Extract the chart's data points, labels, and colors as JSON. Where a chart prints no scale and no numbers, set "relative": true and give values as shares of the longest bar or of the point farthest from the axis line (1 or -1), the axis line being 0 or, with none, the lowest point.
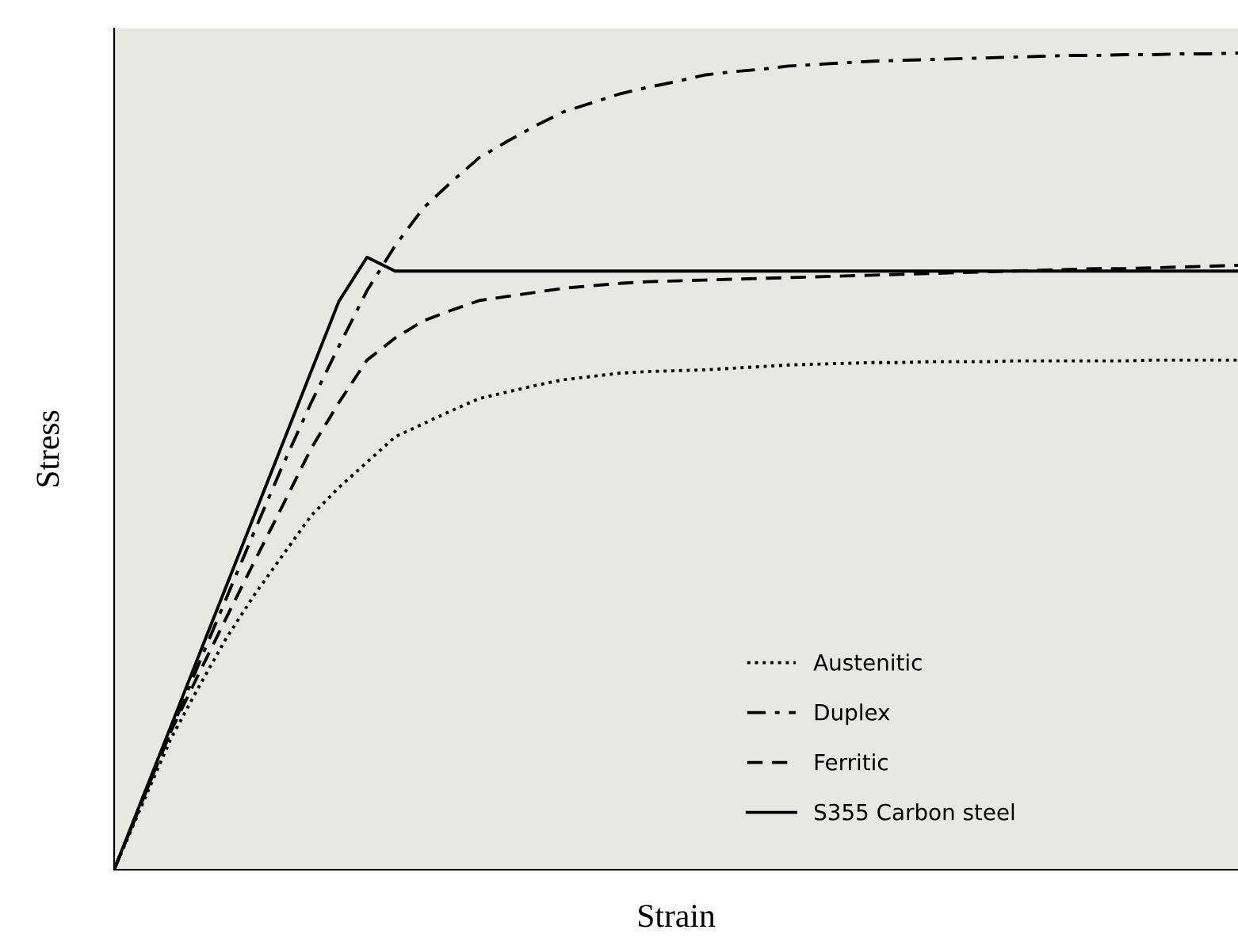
{
  "chart_data": {
    "type": "line",
    "relative": true,
    "xlabel": "Strain",
    "ylabel": "Stress",
    "legend": "bottom right",
    "marker": "none",
    "categories": [
      null,
      null,
      null,
      null,
      null,
      null,
      null,
      null,
      null,
      null,
      null,
      null,
      null,
      null,
      null,
      null,
      null,
      null,
      null,
      null,
      null,
      null,
      null,
      null,
      null,
      null,
      null,
      null,
      null,
      null,
      null,
      null,
      null,
      null,
      null,
      null,
      null,
      null,
      null,
      null,
      null
    ],
    "series": [
      {
        "name": "Austenitic",
        "color": "#000000",
        "line_style": "dotted",
        "values": [
          0,
          0.08,
          0.159,
          0.223,
          0.284,
          0.337,
          0.385,
          0.433,
          0.468,
          0.499,
          0.53,
          0.546,
          0.562,
          0.577,
          0.585,
          0.593,
          0.6,
          0.604,
          0.608,
          0.61,
          0.611,
          0.612,
          0.614,
          0.616,
          0.618,
          0.619,
          0.62,
          0.621,
          0.621,
          0.622,
          0.622,
          0.622,
          0.623,
          0.623,
          0.623,
          0.623,
          0.623,
          0.624,
          0.624,
          0.624,
          0.624
        ]
      },
      {
        "name": "Duplex",
        "color": "#000000",
        "line_style": "dashdot",
        "values": [
          0,
          0.084,
          0.168,
          0.251,
          0.333,
          0.415,
          0.495,
          0.571,
          0.641,
          0.709,
          0.764,
          0.81,
          0.842,
          0.872,
          0.892,
          0.911,
          0.928,
          0.939,
          0.95,
          0.958,
          0.965,
          0.973,
          0.977,
          0.98,
          0.984,
          0.986,
          0.988,
          0.99,
          0.991,
          0.992,
          0.993,
          0.994,
          0.995,
          0.996,
          0.997,
          0.997,
          0.998,
          0.998,
          0.999,
          0.999,
          1.0
        ]
      },
      {
        "name": "Ferritic",
        "color": "#000000",
        "line_style": "dashed",
        "values": [
          0,
          0.084,
          0.168,
          0.239,
          0.309,
          0.378,
          0.446,
          0.515,
          0.572,
          0.624,
          0.651,
          0.672,
          0.685,
          0.697,
          0.702,
          0.707,
          0.712,
          0.715,
          0.718,
          0.72,
          0.721,
          0.722,
          0.723,
          0.724,
          0.725,
          0.726,
          0.727,
          0.728,
          0.729,
          0.73,
          0.731,
          0.732,
          0.733,
          0.734,
          0.735,
          0.736,
          0.736,
          0.737,
          0.738,
          0.739,
          0.74
        ]
      },
      {
        "name": "S355 Carbon steel",
        "color": "#000000",
        "line_style": "solid",
        "values": [
          0,
          0.087,
          0.174,
          0.261,
          0.348,
          0.435,
          0.522,
          0.609,
          0.696,
          0.75,
          0.733,
          0.733,
          0.733,
          0.733,
          0.733,
          0.733,
          0.733,
          0.733,
          0.733,
          0.733,
          0.733,
          0.733,
          0.733,
          0.733,
          0.733,
          0.733,
          0.733,
          0.733,
          0.733,
          0.733,
          0.733,
          0.733,
          0.733,
          0.733,
          0.733,
          0.733,
          0.733,
          0.733,
          0.733,
          0.733,
          0.733
        ]
      }
    ]
  }
}
